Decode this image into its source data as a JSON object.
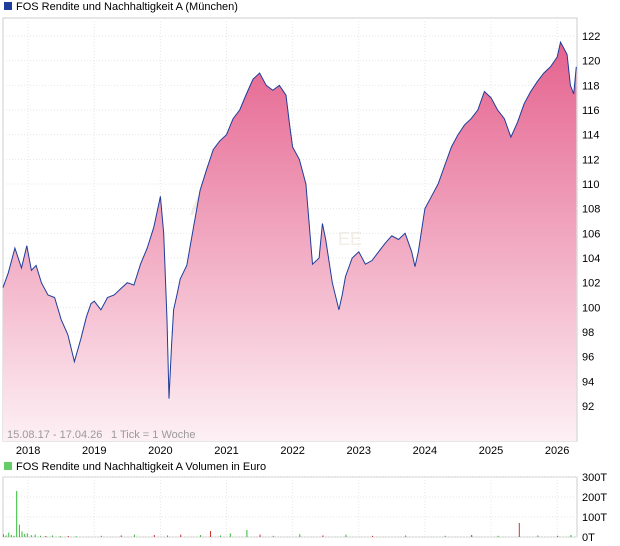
{
  "header": {
    "series_name": "FOS Rendite und Nachhaltigkeit A (München)",
    "volume_name": "FOS Rendite und Nachhaltigkeit A Volumen in Euro"
  },
  "footer": {
    "range": "15.08.17 - 17.04.26",
    "tick": "1 Tick = 1 Woche"
  },
  "colors": {
    "line": "#1f3d99",
    "fill_top": "#e5628e",
    "fill_bottom": "#fdf0f5",
    "volume_up": "#33bb33",
    "volume_down": "#cc3333",
    "legend_price": "#1f3d99",
    "legend_volume": "#66cc66"
  },
  "chart_data": [
    {
      "type": "area",
      "x_ticks": [
        "2018",
        "2019",
        "2020",
        "2021",
        "2022",
        "2023",
        "2024",
        "2025",
        "2026"
      ],
      "y_ticks": [
        92,
        94,
        96,
        98,
        100,
        102,
        104,
        106,
        108,
        110,
        112,
        114,
        116,
        118,
        120,
        122
      ],
      "ylim": [
        90,
        123
      ],
      "xlim": [
        2017.62,
        2026.3
      ],
      "grid": true,
      "series": [
        {
          "x": [
            2017.62,
            2017.7,
            2017.8,
            2017.9,
            2017.98,
            2018.05,
            2018.12,
            2018.2,
            2018.3,
            2018.4,
            2018.5,
            2018.6,
            2018.7,
            2018.8,
            2018.88,
            2018.95,
            2019.0,
            2019.1,
            2019.2,
            2019.3,
            2019.4,
            2019.5,
            2019.6,
            2019.7,
            2019.8,
            2019.9,
            2020.0,
            2020.05,
            2020.1,
            2020.13,
            2020.17,
            2020.2,
            2020.25,
            2020.3,
            2020.4,
            2020.5,
            2020.6,
            2020.7,
            2020.8,
            2020.9,
            2021.0,
            2021.1,
            2021.2,
            2021.3,
            2021.4,
            2021.5,
            2021.6,
            2021.7,
            2021.8,
            2021.9,
            2021.95,
            2022.0,
            2022.1,
            2022.2,
            2022.3,
            2022.4,
            2022.45,
            2022.5,
            2022.6,
            2022.7,
            2022.75,
            2022.8,
            2022.9,
            2023.0,
            2023.1,
            2023.2,
            2023.3,
            2023.4,
            2023.5,
            2023.6,
            2023.7,
            2023.8,
            2023.85,
            2023.9,
            2024.0,
            2024.1,
            2024.2,
            2024.3,
            2024.4,
            2024.5,
            2024.6,
            2024.7,
            2024.8,
            2024.9,
            2025.0,
            2025.1,
            2025.2,
            2025.3,
            2025.4,
            2025.5,
            2025.6,
            2025.7,
            2025.8,
            2025.9,
            2026.0,
            2026.05,
            2026.1,
            2026.15,
            2026.2,
            2026.25,
            2026.29
          ],
          "y": [
            101.6,
            102.8,
            104.8,
            103.2,
            105.0,
            103.0,
            103.4,
            102.0,
            101.0,
            100.8,
            99.0,
            97.8,
            95.6,
            97.5,
            99.2,
            100.3,
            100.5,
            99.8,
            100.8,
            101.0,
            101.5,
            102.0,
            101.8,
            103.5,
            104.8,
            106.5,
            109.0,
            106.0,
            99.0,
            92.6,
            97.0,
            99.8,
            101.0,
            102.3,
            103.4,
            106.5,
            109.5,
            111.2,
            112.8,
            113.5,
            114.0,
            115.3,
            116.0,
            117.3,
            118.5,
            119.0,
            118.0,
            117.6,
            118.0,
            117.2,
            115.0,
            113.0,
            112.0,
            110.0,
            103.5,
            104.0,
            106.8,
            105.5,
            102.0,
            99.8,
            101.0,
            102.5,
            104.0,
            104.5,
            103.5,
            103.8,
            104.5,
            105.2,
            105.8,
            105.5,
            106.0,
            104.5,
            103.3,
            104.5,
            108.0,
            109.0,
            110.0,
            111.5,
            113.0,
            114.0,
            114.8,
            115.3,
            116.0,
            117.5,
            117.0,
            116.0,
            115.3,
            113.8,
            115.0,
            116.5,
            117.5,
            118.3,
            119.0,
            119.5,
            120.3,
            121.5,
            121.0,
            120.5,
            118.0,
            117.3,
            119.5
          ]
        }
      ]
    },
    {
      "type": "bar",
      "y_ticks": [
        "0T",
        "100T",
        "200T",
        "300T"
      ],
      "ylim": [
        0,
        300
      ],
      "bars": [
        {
          "x": 2017.62,
          "v": 14,
          "dir": "up"
        },
        {
          "x": 2017.66,
          "v": 8,
          "dir": "up"
        },
        {
          "x": 2017.7,
          "v": 22,
          "dir": "up"
        },
        {
          "x": 2017.74,
          "v": 10,
          "dir": "up"
        },
        {
          "x": 2017.78,
          "v": 6,
          "dir": "up"
        },
        {
          "x": 2017.82,
          "v": 230,
          "dir": "up"
        },
        {
          "x": 2017.86,
          "v": 62,
          "dir": "up"
        },
        {
          "x": 2017.9,
          "v": 28,
          "dir": "up"
        },
        {
          "x": 2017.94,
          "v": 15,
          "dir": "up"
        },
        {
          "x": 2017.98,
          "v": 18,
          "dir": "up"
        },
        {
          "x": 2018.04,
          "v": 9,
          "dir": "up"
        },
        {
          "x": 2018.1,
          "v": 12,
          "dir": "up"
        },
        {
          "x": 2018.18,
          "v": 6,
          "dir": "up"
        },
        {
          "x": 2018.26,
          "v": 5,
          "dir": "down"
        },
        {
          "x": 2018.36,
          "v": 8,
          "dir": "up"
        },
        {
          "x": 2018.48,
          "v": 4,
          "dir": "up"
        },
        {
          "x": 2018.6,
          "v": 5,
          "dir": "down"
        },
        {
          "x": 2018.72,
          "v": 4,
          "dir": "up"
        },
        {
          "x": 2019.1,
          "v": 6,
          "dir": "up"
        },
        {
          "x": 2019.4,
          "v": 8,
          "dir": "down"
        },
        {
          "x": 2019.6,
          "v": 12,
          "dir": "up"
        },
        {
          "x": 2019.9,
          "v": 10,
          "dir": "down"
        },
        {
          "x": 2020.1,
          "v": 8,
          "dir": "up"
        },
        {
          "x": 2020.3,
          "v": 12,
          "dir": "down"
        },
        {
          "x": 2020.6,
          "v": 10,
          "dir": "up"
        },
        {
          "x": 2020.75,
          "v": 30,
          "dir": "down"
        },
        {
          "x": 2020.9,
          "v": 8,
          "dir": "up"
        },
        {
          "x": 2021.05,
          "v": 18,
          "dir": "up"
        },
        {
          "x": 2021.3,
          "v": 35,
          "dir": "up"
        },
        {
          "x": 2021.5,
          "v": 12,
          "dir": "down"
        },
        {
          "x": 2021.7,
          "v": 6,
          "dir": "up"
        },
        {
          "x": 2022.1,
          "v": 14,
          "dir": "up"
        },
        {
          "x": 2022.45,
          "v": 8,
          "dir": "down"
        },
        {
          "x": 2022.8,
          "v": 12,
          "dir": "up"
        },
        {
          "x": 2023.2,
          "v": 6,
          "dir": "down"
        },
        {
          "x": 2023.7,
          "v": 8,
          "dir": "up"
        },
        {
          "x": 2024.3,
          "v": 6,
          "dir": "up"
        },
        {
          "x": 2024.7,
          "v": 10,
          "dir": "down"
        },
        {
          "x": 2025.1,
          "v": 6,
          "dir": "up"
        },
        {
          "x": 2025.42,
          "v": 70,
          "dir": "down"
        },
        {
          "x": 2025.7,
          "v": 8,
          "dir": "up"
        },
        {
          "x": 2026.0,
          "v": 6,
          "dir": "down"
        },
        {
          "x": 2026.2,
          "v": 10,
          "dir": "up"
        }
      ]
    }
  ]
}
